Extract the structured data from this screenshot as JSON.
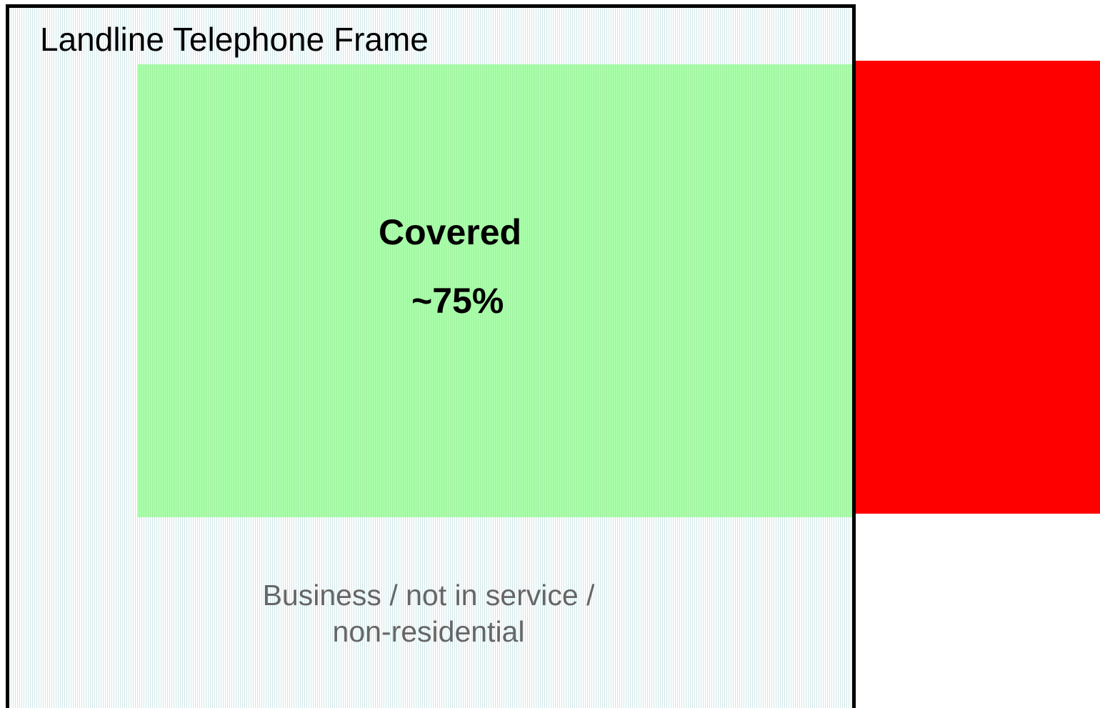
{
  "frame": {
    "title": "Landline Telephone Frame"
  },
  "covered": {
    "label": "Covered",
    "share": "~75%"
  },
  "excluded": {
    "lines": [
      "Business / not in service /",
      "non-residential"
    ]
  }
}
